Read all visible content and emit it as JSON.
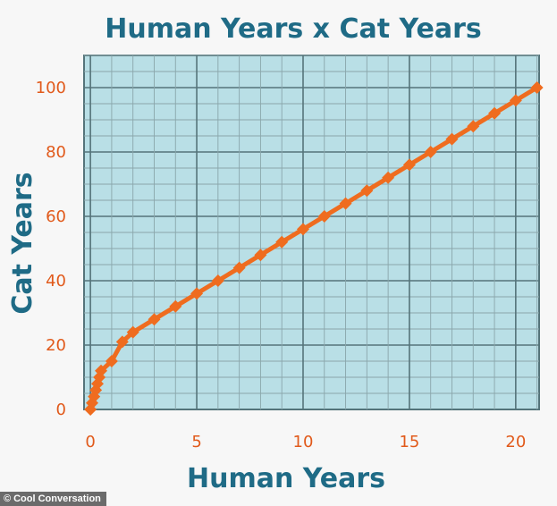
{
  "chart_data": {
    "type": "line",
    "title": "Human Years x Cat Years",
    "xlabel": "Human Years",
    "ylabel": "Cat Years",
    "xlim": [
      -0.3,
      21.1
    ],
    "ylim": [
      0,
      110
    ],
    "xticks": [
      0,
      5,
      10,
      15,
      20
    ],
    "yticks": [
      0,
      20,
      40,
      60,
      80,
      100
    ],
    "grid": true,
    "colors": {
      "series": "#ef6c1f",
      "plot_bg": "#b9dfe6",
      "grid_minor": "#8aa6ab",
      "grid_major": "#55747a",
      "title": "#1f6b86",
      "ticks": "#e15a1b"
    },
    "series": [
      {
        "x": [
          0,
          0.08,
          0.17,
          0.25,
          0.33,
          0.42,
          0.5,
          1,
          1.5,
          2,
          3,
          4,
          5,
          6,
          7,
          8,
          9,
          10,
          11,
          12,
          13,
          14,
          15,
          16,
          17,
          18,
          19,
          20,
          21
        ],
        "y": [
          0,
          2,
          4,
          6,
          8,
          10,
          12,
          15,
          21,
          24,
          28,
          32,
          36,
          40,
          44,
          48,
          52,
          56,
          60,
          64,
          68,
          72,
          76,
          80,
          84,
          88,
          92,
          96,
          100
        ]
      }
    ]
  },
  "credit": {
    "icon": "copyright-icon",
    "symbol": "©",
    "text": "Cool Conversation"
  }
}
